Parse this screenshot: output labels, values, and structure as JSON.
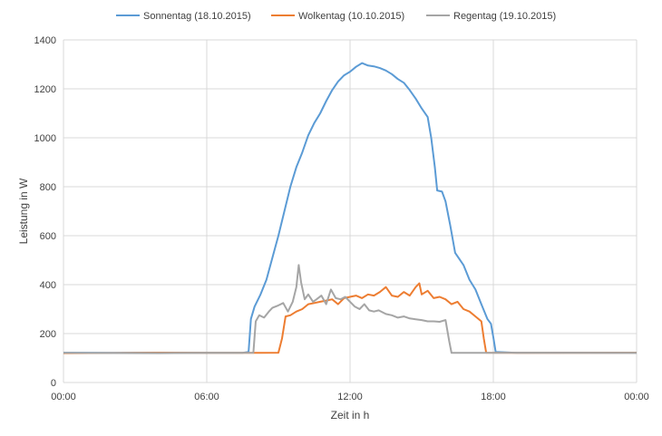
{
  "chart_data": {
    "type": "line",
    "title": "",
    "xlabel": "Zeit in h",
    "ylabel": "Leistung in W",
    "xlim": [
      0,
      24
    ],
    "ylim": [
      0,
      1400
    ],
    "x_ticks": [
      0,
      6,
      12,
      18,
      24
    ],
    "x_tick_labels": [
      "00:00",
      "06:00",
      "12:00",
      "18:00",
      "00:00"
    ],
    "y_ticks": [
      0,
      200,
      400,
      600,
      800,
      1000,
      1200,
      1400
    ],
    "y_tick_labels": [
      "0",
      "200",
      "400",
      "600",
      "800",
      "1000",
      "1200",
      "1400"
    ],
    "grid": true,
    "legend_position": "top",
    "series": [
      {
        "name": "Sonnentag (18.10.2015)",
        "color": "#5b9bd5",
        "points": [
          [
            0,
            122
          ],
          [
            2,
            121
          ],
          [
            4,
            122
          ],
          [
            6,
            121
          ],
          [
            7.5,
            121
          ],
          [
            7.75,
            125
          ],
          [
            7.85,
            260
          ],
          [
            8.0,
            310
          ],
          [
            8.25,
            360
          ],
          [
            8.5,
            420
          ],
          [
            8.75,
            510
          ],
          [
            9.0,
            600
          ],
          [
            9.25,
            700
          ],
          [
            9.5,
            800
          ],
          [
            9.75,
            880
          ],
          [
            10.0,
            940
          ],
          [
            10.25,
            1010
          ],
          [
            10.5,
            1060
          ],
          [
            10.75,
            1100
          ],
          [
            11.0,
            1150
          ],
          [
            11.25,
            1195
          ],
          [
            11.5,
            1230
          ],
          [
            11.75,
            1255
          ],
          [
            12.0,
            1270
          ],
          [
            12.25,
            1290
          ],
          [
            12.5,
            1305
          ],
          [
            12.75,
            1295
          ],
          [
            13.0,
            1292
          ],
          [
            13.25,
            1285
          ],
          [
            13.5,
            1275
          ],
          [
            13.75,
            1260
          ],
          [
            14.0,
            1240
          ],
          [
            14.25,
            1225
          ],
          [
            14.5,
            1195
          ],
          [
            14.75,
            1160
          ],
          [
            15.0,
            1120
          ],
          [
            15.25,
            1085
          ],
          [
            15.4,
            1000
          ],
          [
            15.55,
            880
          ],
          [
            15.65,
            785
          ],
          [
            15.85,
            780
          ],
          [
            16.0,
            740
          ],
          [
            16.2,
            640
          ],
          [
            16.4,
            530
          ],
          [
            16.75,
            480
          ],
          [
            17.0,
            420
          ],
          [
            17.25,
            380
          ],
          [
            17.5,
            320
          ],
          [
            17.75,
            260
          ],
          [
            17.9,
            240
          ],
          [
            18.0,
            185
          ],
          [
            18.1,
            125
          ],
          [
            19.0,
            121
          ],
          [
            21,
            122
          ],
          [
            24,
            121
          ]
        ]
      },
      {
        "name": "Wolkentag (10.10.2015)",
        "color": "#ed7d31",
        "points": [
          [
            0,
            120
          ],
          [
            4,
            122
          ],
          [
            6,
            121
          ],
          [
            8.25,
            121
          ],
          [
            9.0,
            122
          ],
          [
            9.15,
            180
          ],
          [
            9.3,
            270
          ],
          [
            9.5,
            275
          ],
          [
            9.75,
            290
          ],
          [
            10.0,
            300
          ],
          [
            10.25,
            320
          ],
          [
            10.5,
            325
          ],
          [
            10.75,
            330
          ],
          [
            11.0,
            335
          ],
          [
            11.25,
            340
          ],
          [
            11.5,
            320
          ],
          [
            11.75,
            345
          ],
          [
            12.0,
            350
          ],
          [
            12.25,
            355
          ],
          [
            12.5,
            345
          ],
          [
            12.75,
            360
          ],
          [
            13.0,
            355
          ],
          [
            13.25,
            370
          ],
          [
            13.5,
            390
          ],
          [
            13.75,
            355
          ],
          [
            14.0,
            350
          ],
          [
            14.25,
            370
          ],
          [
            14.5,
            355
          ],
          [
            14.75,
            390
          ],
          [
            14.9,
            405
          ],
          [
            15.0,
            360
          ],
          [
            15.25,
            375
          ],
          [
            15.5,
            345
          ],
          [
            15.75,
            350
          ],
          [
            16.0,
            340
          ],
          [
            16.25,
            320
          ],
          [
            16.5,
            330
          ],
          [
            16.75,
            300
          ],
          [
            17.0,
            290
          ],
          [
            17.25,
            270
          ],
          [
            17.5,
            250
          ],
          [
            17.6,
            180
          ],
          [
            17.7,
            122
          ],
          [
            19,
            121
          ],
          [
            21,
            121
          ],
          [
            24,
            122
          ]
        ]
      },
      {
        "name": "Regentag (19.10.2015)",
        "color": "#a5a5a5",
        "points": [
          [
            0,
            121
          ],
          [
            4,
            120
          ],
          [
            6,
            121
          ],
          [
            7.95,
            122
          ],
          [
            8.05,
            250
          ],
          [
            8.2,
            275
          ],
          [
            8.4,
            265
          ],
          [
            8.6,
            290
          ],
          [
            8.75,
            305
          ],
          [
            9.0,
            315
          ],
          [
            9.2,
            325
          ],
          [
            9.4,
            290
          ],
          [
            9.6,
            330
          ],
          [
            9.75,
            390
          ],
          [
            9.85,
            480
          ],
          [
            9.95,
            410
          ],
          [
            10.1,
            340
          ],
          [
            10.25,
            360
          ],
          [
            10.45,
            330
          ],
          [
            10.6,
            340
          ],
          [
            10.8,
            355
          ],
          [
            11.0,
            320
          ],
          [
            11.2,
            380
          ],
          [
            11.4,
            345
          ],
          [
            11.6,
            340
          ],
          [
            11.8,
            350
          ],
          [
            12.0,
            330
          ],
          [
            12.2,
            310
          ],
          [
            12.4,
            300
          ],
          [
            12.6,
            320
          ],
          [
            12.8,
            295
          ],
          [
            13.0,
            290
          ],
          [
            13.2,
            295
          ],
          [
            13.5,
            280
          ],
          [
            13.75,
            275
          ],
          [
            14.0,
            265
          ],
          [
            14.25,
            270
          ],
          [
            14.5,
            262
          ],
          [
            14.75,
            258
          ],
          [
            15.0,
            255
          ],
          [
            15.25,
            250
          ],
          [
            15.5,
            250
          ],
          [
            15.75,
            248
          ],
          [
            16.0,
            255
          ],
          [
            16.15,
            170
          ],
          [
            16.25,
            121
          ],
          [
            18,
            121
          ],
          [
            19,
            122
          ],
          [
            21,
            121
          ],
          [
            24,
            121
          ]
        ]
      }
    ]
  }
}
